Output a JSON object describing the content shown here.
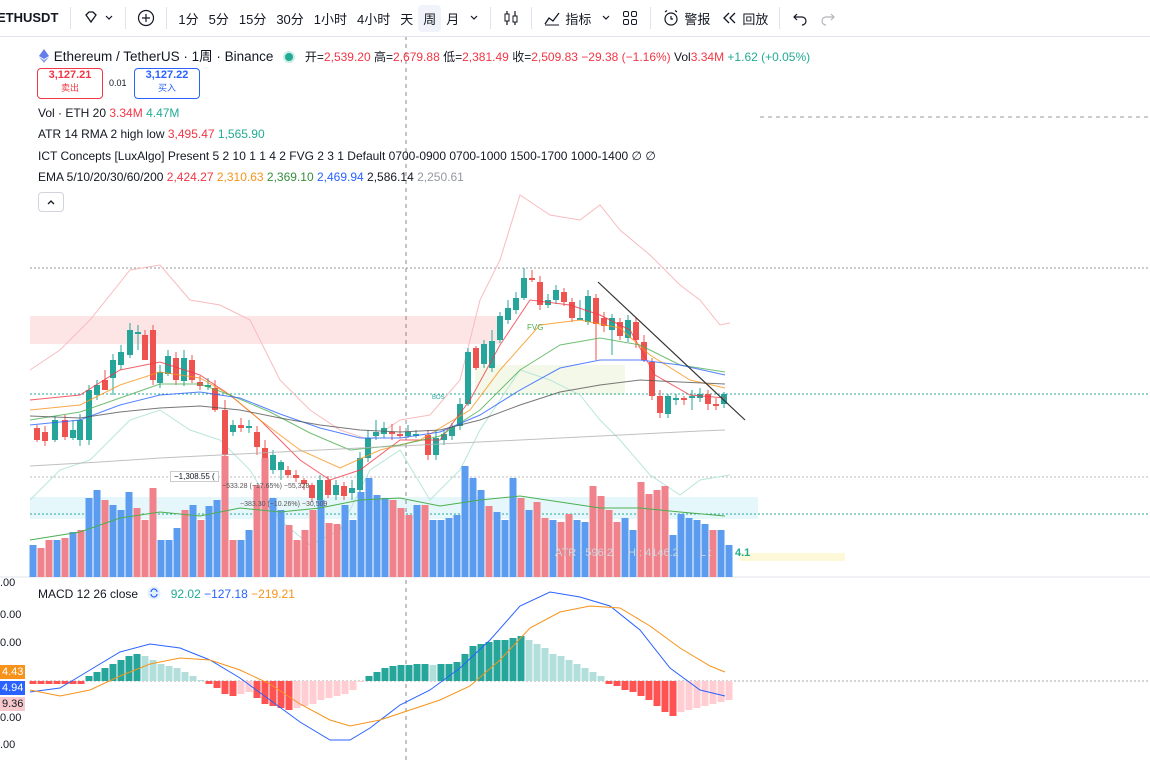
{
  "toolbar": {
    "symbol": "ETHUSDT",
    "intervals": [
      "1分",
      "5分",
      "15分",
      "30分",
      "1小时",
      "4小时",
      "天",
      "周",
      "月"
    ],
    "active_interval": "周",
    "indicators_label": "指标",
    "alert_label": "警报",
    "replay_label": "回放"
  },
  "header": {
    "title": "Ethereum / TetherUS · 1周 · Binance",
    "open_label": "开",
    "open": "2,539.20",
    "high_label": "高",
    "high": "2,679.88",
    "low_label": "低",
    "low": "2,381.49",
    "close_label": "收",
    "close": "2,509.83",
    "change": "−29.38 (−1.16%)",
    "vol_label": "Vol",
    "vol": "3.34M",
    "vol_change": "+1.62 (+0.05%)"
  },
  "trade": {
    "sell_price": "3,127.21",
    "sell_label": "卖出",
    "spread": "0.01",
    "buy_price": "3,127.22",
    "buy_label": "买入"
  },
  "indicators": {
    "vol": {
      "name": "Vol · ETH 20",
      "v1": "3.34M",
      "v2": "4.47M"
    },
    "atr": {
      "name": "ATR 14 RMA 2 high low",
      "v1": "3,495.47",
      "v2": "1,565.90"
    },
    "ict": {
      "text": "ICT Concepts [LuxAlgo] Present 5 2 10 1 1 4 2 FVG 2 3 1 Default 0700-0900 0700-1000 1500-1700 1000-1400 ∅ ∅"
    },
    "ema": {
      "name": "EMA 5/10/20/30/60/200",
      "v1": "2,424.27",
      "v2": "2,310.63",
      "v3": "2,369.10",
      "v4": "2,469.94",
      "v5": "2,586.14",
      "v6": "2,250.61"
    }
  },
  "macd": {
    "name": "MACD 12 26 close",
    "v1": "92.02",
    "v2": "−127.18",
    "v3": "−219.21"
  },
  "macd_axis": {
    "ticks": [
      ".00",
      "0.00",
      "0.00",
      "0.00",
      "0.00",
      ".00"
    ],
    "badge_orange": "4.43",
    "badge_blue": "4.94",
    "badge_pink": "9.36"
  },
  "annotations": {
    "fvg": "FVG",
    "atr_box": "ATR : 596.2",
    "hl_box": "H : 4146.2",
    "l_box": "L : ",
    "last_val": "4.1",
    "bos": "BOS",
    "box1": "−1,308.55 (",
    "box2": "−533.28 (−17.65%) −55,328",
    "box3": "−383.30 (−10.26%) −30,509"
  },
  "colors": {
    "up": "#26a69a",
    "down": "#ef5350",
    "vol_up": "#5b9cf0",
    "vol_down": "#f0828c",
    "ema5": "#f23645",
    "ema10": "#f7931a",
    "ema20": "#4caf50",
    "ema30": "#2962ff",
    "ema60": "#555555",
    "ema200": "#b0b0b0"
  }
}
